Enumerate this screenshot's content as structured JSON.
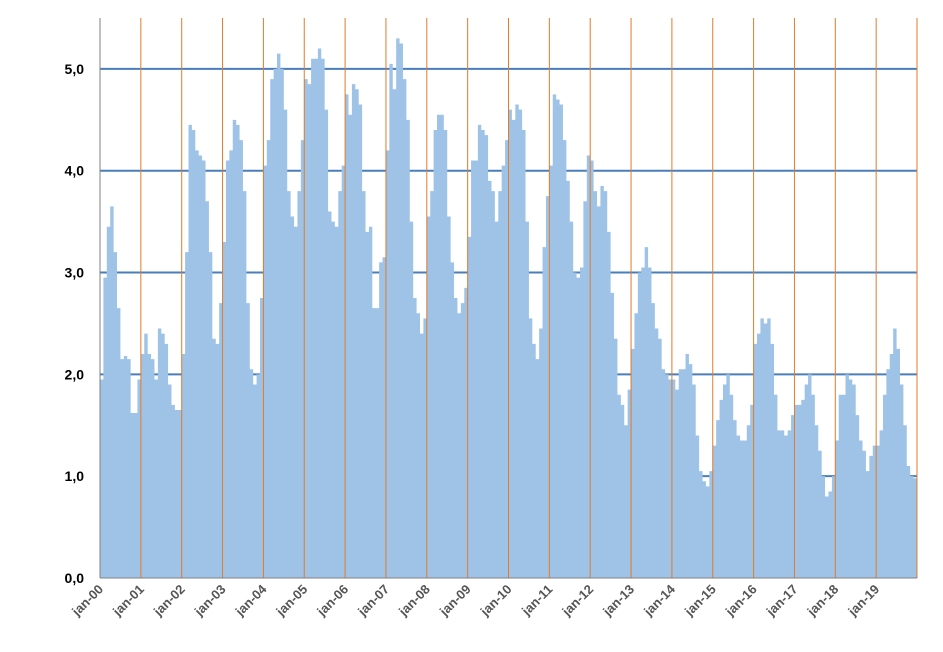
{
  "chart_data": {
    "type": "area",
    "title": "",
    "xlabel": "",
    "ylabel": "",
    "ylim": [
      0,
      5.5
    ],
    "yticks": [
      "0,0",
      "1,0",
      "2,0",
      "3,0",
      "4,0",
      "5,0"
    ],
    "xticks": [
      "jan-00",
      "jan-01",
      "jan-02",
      "jan-03",
      "jan-04",
      "jan-05",
      "jan-06",
      "jan-07",
      "jan-08",
      "jan-09",
      "jan-10",
      "jan-11",
      "jan-12",
      "jan-13",
      "jan-14",
      "jan-15",
      "jan-16",
      "jan-17",
      "jan-18",
      "jan-19"
    ],
    "grid": {
      "horizontal": true,
      "vertical": true
    },
    "colors": {
      "fill": "#9fc3e7",
      "h_grid": "#4a7ebb",
      "v_grid": "#e07b2a",
      "axis": "#808080"
    },
    "series": [
      {
        "x_start": "jan-00",
        "x_step": "month",
        "values": [
          1.95,
          2.95,
          3.45,
          3.65,
          3.2,
          2.65,
          2.15,
          2.18,
          2.15,
          1.62,
          1.62,
          1.95,
          2.2,
          2.4,
          2.2,
          2.15,
          1.95,
          2.45,
          2.4,
          2.3,
          1.9,
          1.7,
          1.65,
          1.65,
          2.2,
          3.2,
          4.45,
          4.4,
          4.2,
          4.15,
          4.1,
          3.7,
          3.2,
          2.35,
          2.3,
          2.7,
          3.3,
          4.1,
          4.2,
          4.5,
          4.45,
          4.3,
          3.8,
          2.7,
          2.05,
          1.9,
          2.0,
          2.75,
          4.05,
          4.3,
          4.9,
          5.0,
          5.15,
          5.0,
          4.6,
          3.8,
          3.55,
          3.45,
          3.8,
          4.3,
          4.9,
          4.85,
          5.1,
          5.1,
          5.2,
          5.1,
          4.6,
          3.6,
          3.5,
          3.45,
          3.8,
          4.05,
          4.75,
          4.55,
          4.85,
          4.8,
          4.65,
          3.8,
          3.4,
          3.45,
          2.65,
          2.65,
          3.1,
          3.15,
          4.2,
          5.05,
          4.8,
          5.3,
          5.25,
          4.9,
          4.5,
          3.5,
          2.75,
          2.6,
          2.4,
          2.55,
          3.55,
          3.8,
          4.4,
          4.55,
          4.55,
          4.4,
          3.55,
          3.1,
          2.75,
          2.6,
          2.7,
          2.85,
          3.35,
          4.1,
          4.1,
          4.45,
          4.4,
          4.35,
          3.9,
          3.8,
          3.5,
          3.8,
          4.05,
          4.3,
          4.6,
          4.5,
          4.65,
          4.6,
          4.4,
          3.5,
          2.55,
          2.3,
          2.15,
          2.45,
          3.25,
          3.75,
          4.05,
          4.75,
          4.7,
          4.65,
          4.3,
          3.9,
          3.5,
          3.0,
          2.95,
          3.05,
          3.7,
          4.15,
          4.1,
          3.8,
          3.65,
          3.85,
          3.8,
          3.4,
          2.8,
          2.35,
          1.8,
          1.7,
          1.5,
          1.85,
          2.25,
          2.6,
          3.0,
          3.05,
          3.25,
          3.05,
          2.7,
          2.45,
          2.35,
          2.05,
          2.0,
          1.95,
          1.95,
          1.85,
          2.05,
          2.05,
          2.2,
          2.1,
          1.9,
          1.4,
          1.05,
          0.95,
          0.9,
          1.05,
          1.3,
          1.55,
          1.75,
          1.9,
          2.0,
          1.8,
          1.55,
          1.4,
          1.35,
          1.35,
          1.5,
          1.7,
          2.3,
          2.4,
          2.55,
          2.5,
          2.55,
          2.3,
          1.8,
          1.45,
          1.45,
          1.4,
          1.45,
          1.6,
          1.7,
          1.7,
          1.75,
          1.9,
          2.0,
          1.8,
          1.5,
          1.25,
          1.0,
          0.8,
          0.85,
          1.0,
          1.35,
          1.8,
          1.8,
          2.0,
          1.95,
          1.9,
          1.6,
          1.35,
          1.25,
          1.05,
          1.2,
          1.3,
          1.3,
          1.45,
          1.8,
          2.05,
          2.2,
          2.45,
          2.25,
          1.9,
          1.5,
          1.1,
          1.0,
          0.98
        ]
      }
    ]
  }
}
